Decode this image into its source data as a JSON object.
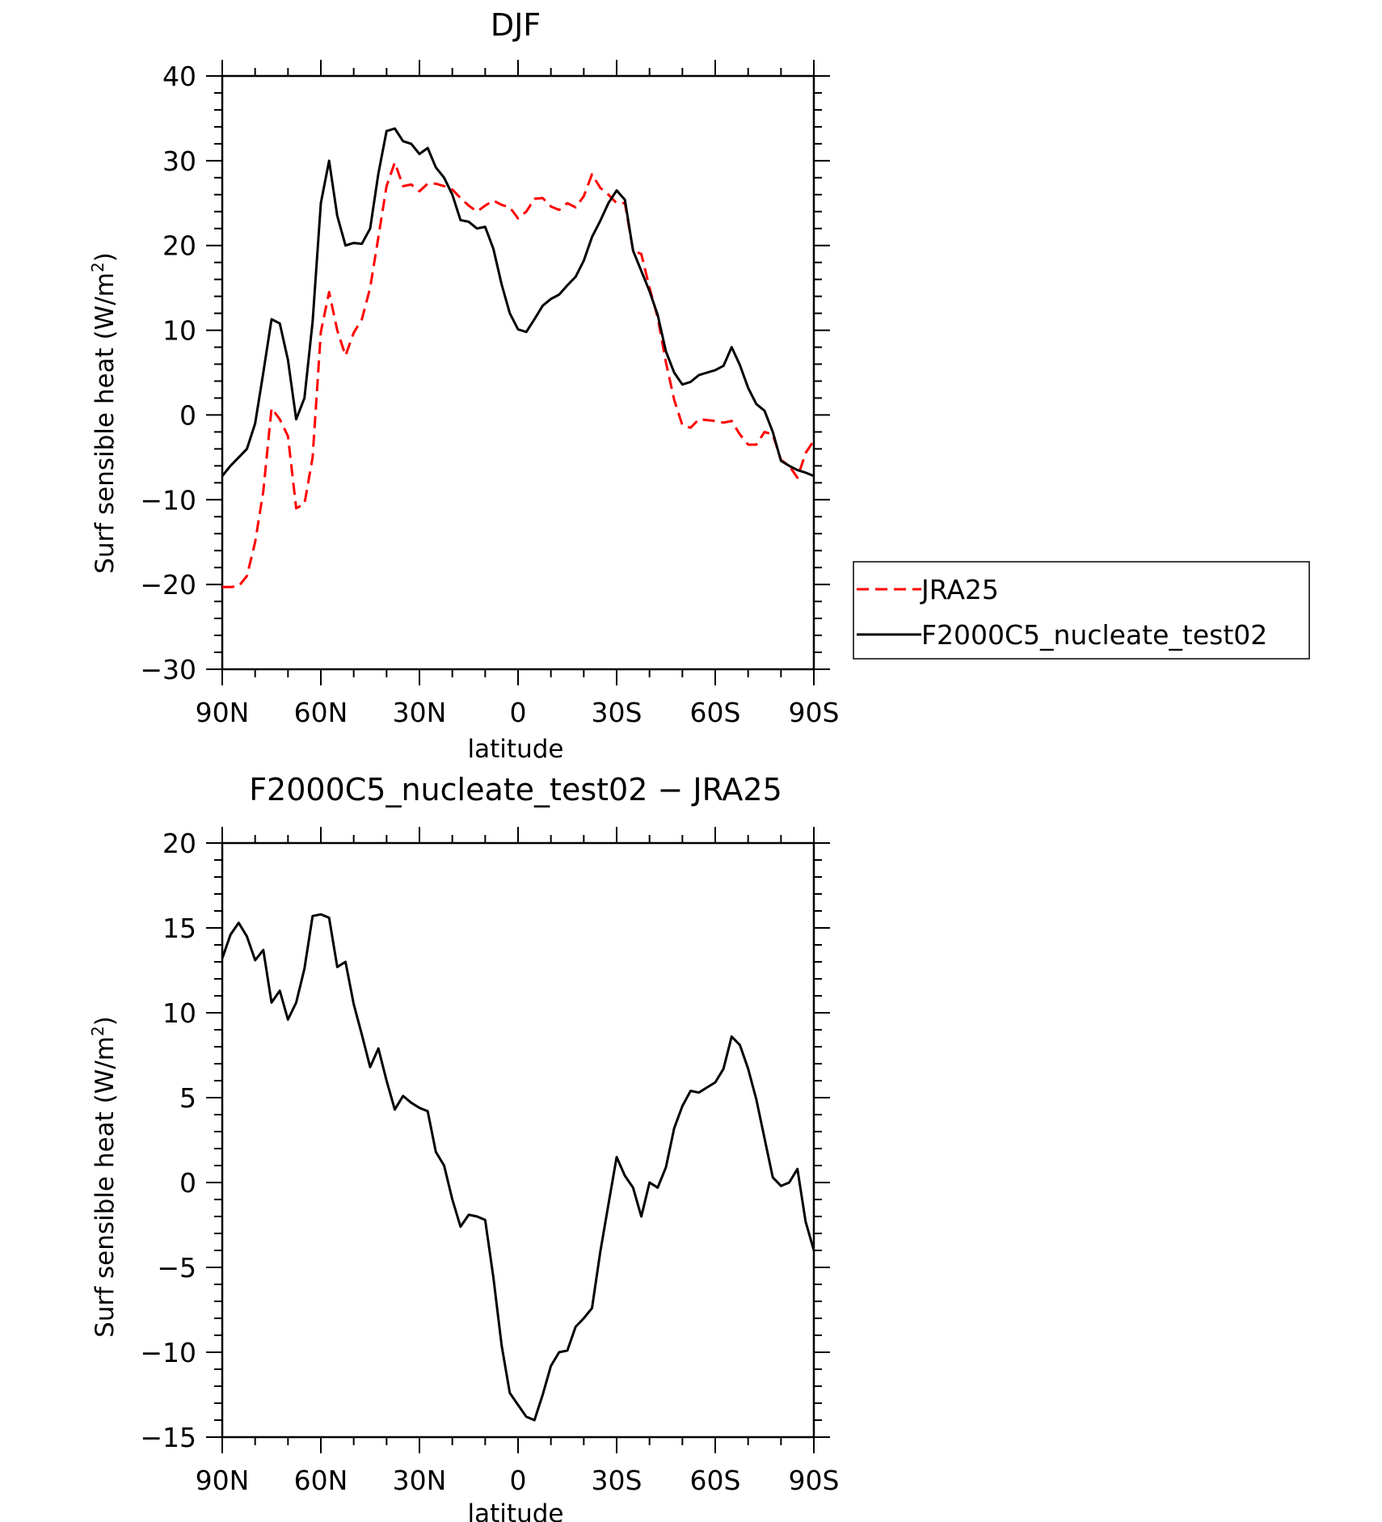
{
  "colors": {
    "jra": "#ff0000",
    "model": "#000000",
    "axis": "#000000"
  },
  "chart_data": [
    {
      "type": "line",
      "title": "DJF",
      "xlabel": "latitude",
      "ylabel_main": "Surf sensible heat (W/m",
      "ylabel_sup": "2",
      "ylabel_close": ")",
      "xlim": [
        90,
        -90
      ],
      "ylim": [
        -30,
        40
      ],
      "yticks": [
        -30,
        -20,
        -10,
        0,
        10,
        20,
        30,
        40
      ],
      "ytick_labels": [
        "−30",
        "−20",
        "−10",
        "0",
        "10",
        "20",
        "30",
        "40"
      ],
      "xticks": [
        90,
        60,
        30,
        0,
        -30,
        -60,
        -90
      ],
      "xtick_labels": [
        "90N",
        "60N",
        "30N",
        "0",
        "30S",
        "60S",
        "90S"
      ],
      "legend": {
        "position": "right",
        "entries": [
          "JRA25",
          "F2000C5_nucleate_test02"
        ]
      },
      "series": [
        {
          "name": "JRA25",
          "style": "dashed",
          "x": [
            90,
            87.5,
            85,
            82.5,
            80,
            77.5,
            75,
            72.5,
            70,
            67.5,
            65,
            62.5,
            60,
            57.5,
            55,
            52.5,
            50,
            47.5,
            45,
            42.5,
            40,
            37.5,
            35,
            32.5,
            30,
            27.5,
            25,
            22.5,
            20,
            17.5,
            15,
            12.5,
            10,
            7.5,
            5,
            2.5,
            0,
            -2.5,
            -5,
            -7.5,
            -10,
            -12.5,
            -15,
            -17.5,
            -20,
            -22.5,
            -25,
            -27.5,
            -30,
            -32.5,
            -35,
            -37.5,
            -40,
            -42.5,
            -45,
            -47.5,
            -50,
            -52.5,
            -55,
            -57.5,
            -60,
            -62.5,
            -65,
            -67.5,
            -70,
            -72.5,
            -75,
            -77.5,
            -80,
            -82.5,
            -85,
            -87.5,
            -90
          ],
          "y": [
            -20.3,
            -20.3,
            -20.2,
            -19,
            -15,
            -9,
            0.8,
            -0.5,
            -2.5,
            -11,
            -10.5,
            -5,
            9.8,
            14.5,
            10,
            7,
            9.7,
            11.3,
            15,
            21,
            27,
            29.8,
            27,
            27.2,
            26.4,
            27.3,
            27.3,
            27,
            26.6,
            25.6,
            24.7,
            24,
            24.7,
            25.3,
            24.8,
            24.5,
            23.2,
            24,
            25.5,
            25.6,
            24.6,
            24.2,
            25,
            24.5,
            25.8,
            28.4,
            26.8,
            26,
            25,
            25,
            19.4,
            19,
            15,
            11.5,
            6.2,
            1.8,
            -1.2,
            -1.5,
            -0.5,
            -0.6,
            -0.7,
            -0.9,
            -0.7,
            -2.3,
            -3.5,
            -3.5,
            -2,
            -2.3,
            -5.3,
            -6,
            -7.4,
            -4.5,
            -3
          ]
        },
        {
          "name": "F2000C5_nucleate_test02",
          "style": "solid",
          "x": [
            90,
            87.5,
            85,
            82.5,
            80,
            77.5,
            75,
            72.5,
            70,
            67.5,
            65,
            62.5,
            60,
            57.5,
            55,
            52.5,
            50,
            47.5,
            45,
            42.5,
            40,
            37.5,
            35,
            32.5,
            30,
            27.5,
            25,
            22.5,
            20,
            17.5,
            15,
            12.5,
            10,
            7.5,
            5,
            2.5,
            0,
            -2.5,
            -5,
            -7.5,
            -10,
            -12.5,
            -15,
            -17.5,
            -20,
            -22.5,
            -25,
            -27.5,
            -30,
            -32.5,
            -35,
            -37.5,
            -40,
            -42.5,
            -45,
            -47.5,
            -50,
            -52.5,
            -55,
            -57.5,
            -60,
            -62.5,
            -65,
            -67.5,
            -70,
            -72.5,
            -75,
            -77.5,
            -80,
            -82.5,
            -85,
            -87.5,
            -90
          ],
          "y": [
            -7.2,
            -6,
            -5,
            -4,
            -1,
            5,
            11.3,
            10.8,
            6.5,
            -0.5,
            2,
            11,
            25,
            30,
            23.5,
            20,
            20.3,
            20.2,
            22,
            28.5,
            33.5,
            33.8,
            32.3,
            32,
            30.8,
            31.5,
            29.2,
            28,
            26,
            23,
            22.8,
            22,
            22.2,
            19.6,
            15.4,
            12,
            10.1,
            9.8,
            11.3,
            12.9,
            13.7,
            14.2,
            15.3,
            16.3,
            18.2,
            21,
            22.9,
            25,
            26.5,
            25.4,
            19.4,
            17,
            14.6,
            11.8,
            7.5,
            5,
            3.6,
            3.9,
            4.7,
            5,
            5.3,
            5.8,
            8,
            5.9,
            3.2,
            1.3,
            0.5,
            -2,
            -5.4,
            -6,
            -6.5,
            -6.8,
            -7.2
          ]
        }
      ]
    },
    {
      "type": "line",
      "title": "F2000C5_nucleate_test02 − JRA25",
      "xlabel": "latitude",
      "ylabel_main": "Surf sensible heat (W/m",
      "ylabel_sup": "2",
      "ylabel_close": ")",
      "xlim": [
        90,
        -90
      ],
      "ylim": [
        -15,
        20
      ],
      "yticks": [
        -15,
        -10,
        -5,
        0,
        5,
        10,
        15,
        20
      ],
      "ytick_labels": [
        "−15",
        "−10",
        "−5",
        "0",
        "5",
        "10",
        "15",
        "20"
      ],
      "xticks": [
        90,
        60,
        30,
        0,
        -30,
        -60,
        -90
      ],
      "xtick_labels": [
        "90N",
        "60N",
        "30N",
        "0",
        "30S",
        "60S",
        "90S"
      ],
      "series": [
        {
          "style": "solid",
          "x": [
            90,
            87.5,
            85,
            82.5,
            80,
            77.5,
            75,
            72.5,
            70,
            67.5,
            65,
            62.5,
            60,
            57.5,
            55,
            52.5,
            50,
            47.5,
            45,
            42.5,
            40,
            37.5,
            35,
            32.5,
            30,
            27.5,
            25,
            22.5,
            20,
            17.5,
            15,
            12.5,
            10,
            7.5,
            5,
            2.5,
            0,
            -2.5,
            -5,
            -7.5,
            -10,
            -12.5,
            -15,
            -17.5,
            -20,
            -22.5,
            -25,
            -27.5,
            -30,
            -32.5,
            -35,
            -37.5,
            -40,
            -42.5,
            -45,
            -47.5,
            -50,
            -52.5,
            -55,
            -57.5,
            -60,
            -62.5,
            -65,
            -67.5,
            -70,
            -72.5,
            -75,
            -77.5,
            -80,
            -82.5,
            -85,
            -87.5,
            -90
          ],
          "y": [
            13.2,
            14.6,
            15.3,
            14.5,
            13.1,
            13.7,
            10.6,
            11.3,
            9.6,
            10.6,
            12.6,
            15.7,
            15.8,
            15.6,
            12.7,
            13,
            10.5,
            8.7,
            6.8,
            7.9,
            6,
            4.3,
            5.1,
            4.7,
            4.4,
            4.2,
            1.8,
            1,
            -1,
            -2.6,
            -1.9,
            -2,
            -2.2,
            -5.6,
            -9.6,
            -12.4,
            -13.1,
            -13.8,
            -14,
            -12.5,
            -10.8,
            -10,
            -9.9,
            -8.5,
            -8,
            -7.4,
            -4.1,
            -1.3,
            1.5,
            0.4,
            -0.3,
            -2,
            0,
            -0.3,
            0.9,
            3.2,
            4.5,
            5.4,
            5.3,
            5.6,
            5.9,
            6.7,
            8.6,
            8.1,
            6.7,
            4.9,
            2.6,
            0.3,
            -0.2,
            0,
            0.8,
            -2.3,
            -4
          ]
        }
      ]
    }
  ]
}
